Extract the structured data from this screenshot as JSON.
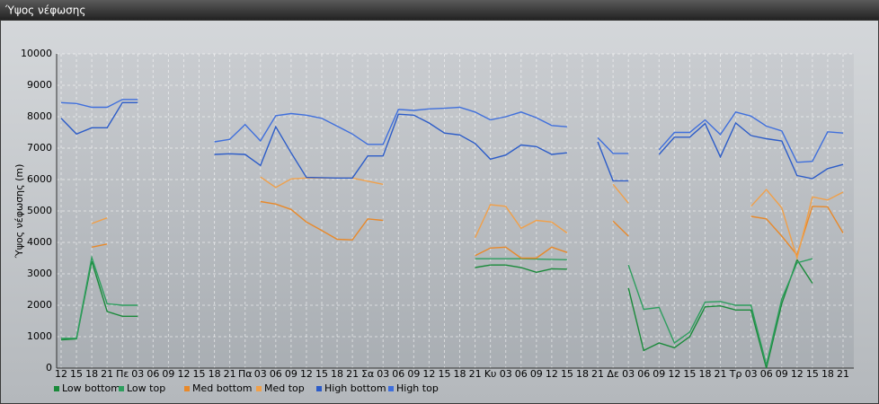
{
  "chart_data": {
    "type": "line",
    "title": "Ύψος νέφωσης",
    "y_label": "Ύψος νέφωσης (m)",
    "categories": [
      "12",
      "15",
      "18",
      "21",
      "Πε",
      "03",
      "06",
      "09",
      "12",
      "15",
      "18",
      "21",
      "Πα",
      "03",
      "06",
      "09",
      "12",
      "15",
      "18",
      "21",
      "Σα",
      "03",
      "06",
      "09",
      "12",
      "15",
      "18",
      "21",
      "Κυ",
      "03",
      "06",
      "09",
      "12",
      "15",
      "18",
      "21",
      "Δε",
      "03",
      "06",
      "09",
      "12",
      "15",
      "18",
      "21",
      "Τρ",
      "03",
      "06",
      "09",
      "12",
      "15",
      "18",
      "21"
    ],
    "ylim": [
      0,
      10000
    ],
    "yticks": [
      0,
      1000,
      2000,
      3000,
      4000,
      5000,
      6000,
      7000,
      8000,
      9000,
      10000
    ],
    "grid": true,
    "series": [
      {
        "name": "Low bottom",
        "color": "#1a8a3a",
        "values": [
          900,
          930,
          3400,
          1800,
          1650,
          1650,
          null,
          null,
          null,
          null,
          null,
          null,
          null,
          null,
          null,
          null,
          null,
          null,
          null,
          null,
          null,
          null,
          null,
          null,
          null,
          null,
          null,
          3200,
          3280,
          3280,
          3200,
          3050,
          3160,
          3150,
          null,
          null,
          null,
          2550,
          560,
          800,
          650,
          1000,
          1950,
          1980,
          1850,
          1850,
          0,
          2050,
          3450,
          2700,
          null,
          null
        ]
      },
      {
        "name": "Low top",
        "color": "#2e9e5e",
        "values": [
          950,
          950,
          3520,
          2050,
          2000,
          2000,
          null,
          null,
          null,
          null,
          null,
          null,
          null,
          null,
          null,
          null,
          null,
          null,
          null,
          null,
          null,
          null,
          null,
          null,
          null,
          null,
          null,
          3480,
          3480,
          3480,
          3480,
          3470,
          3460,
          3450,
          null,
          null,
          null,
          3280,
          1870,
          1930,
          800,
          1150,
          2100,
          2120,
          2000,
          2000,
          100,
          2200,
          3350,
          3480,
          null,
          null
        ]
      },
      {
        "name": "Med bottom",
        "color": "#e8892a",
        "values": [
          null,
          null,
          3850,
          3950,
          null,
          null,
          null,
          null,
          null,
          null,
          null,
          null,
          null,
          5300,
          5220,
          5050,
          4650,
          4380,
          4100,
          4080,
          4750,
          4700,
          null,
          null,
          null,
          null,
          null,
          3580,
          3820,
          3850,
          3500,
          3500,
          3850,
          3680,
          null,
          null,
          4680,
          4200,
          null,
          null,
          null,
          null,
          null,
          null,
          null,
          4830,
          4750,
          4200,
          3600,
          5150,
          5130,
          4300
        ]
      },
      {
        "name": "Med top",
        "color": "#f0a04a",
        "values": [
          null,
          null,
          4600,
          4780,
          null,
          null,
          null,
          null,
          null,
          null,
          null,
          null,
          null,
          6080,
          5750,
          6020,
          6050,
          6050,
          6050,
          6050,
          5950,
          5850,
          null,
          null,
          null,
          null,
          null,
          4150,
          5200,
          5150,
          4450,
          4700,
          4650,
          4300,
          null,
          null,
          5850,
          5250,
          null,
          null,
          null,
          null,
          null,
          null,
          null,
          5150,
          5680,
          5100,
          3500,
          5450,
          5350,
          5600
        ]
      },
      {
        "name": "High bottom",
        "color": "#2c5cc8",
        "values": [
          7950,
          7450,
          7650,
          7650,
          8450,
          8450,
          null,
          null,
          null,
          null,
          6800,
          6820,
          6800,
          6450,
          7680,
          6850,
          6070,
          6060,
          6050,
          6050,
          6750,
          6750,
          8080,
          8050,
          7800,
          7480,
          7420,
          7150,
          6650,
          6780,
          7100,
          7050,
          6800,
          6850,
          null,
          7200,
          5960,
          5960,
          null,
          6800,
          7350,
          7350,
          7780,
          6720,
          7800,
          7400,
          7300,
          7230,
          6130,
          6030,
          6350,
          6480
        ]
      },
      {
        "name": "High top",
        "color": "#3f6fdc",
        "values": [
          8450,
          8420,
          8300,
          8300,
          8550,
          8550,
          null,
          null,
          null,
          null,
          7200,
          7280,
          7750,
          7230,
          8030,
          8100,
          8050,
          7950,
          7700,
          7450,
          7120,
          7120,
          8230,
          8200,
          8250,
          8270,
          8300,
          8150,
          7900,
          8000,
          8150,
          7970,
          7720,
          7680,
          null,
          7330,
          6830,
          6830,
          null,
          6950,
          7500,
          7500,
          7900,
          7430,
          8150,
          8020,
          7700,
          7550,
          6550,
          6580,
          7520,
          7480
        ]
      }
    ]
  }
}
